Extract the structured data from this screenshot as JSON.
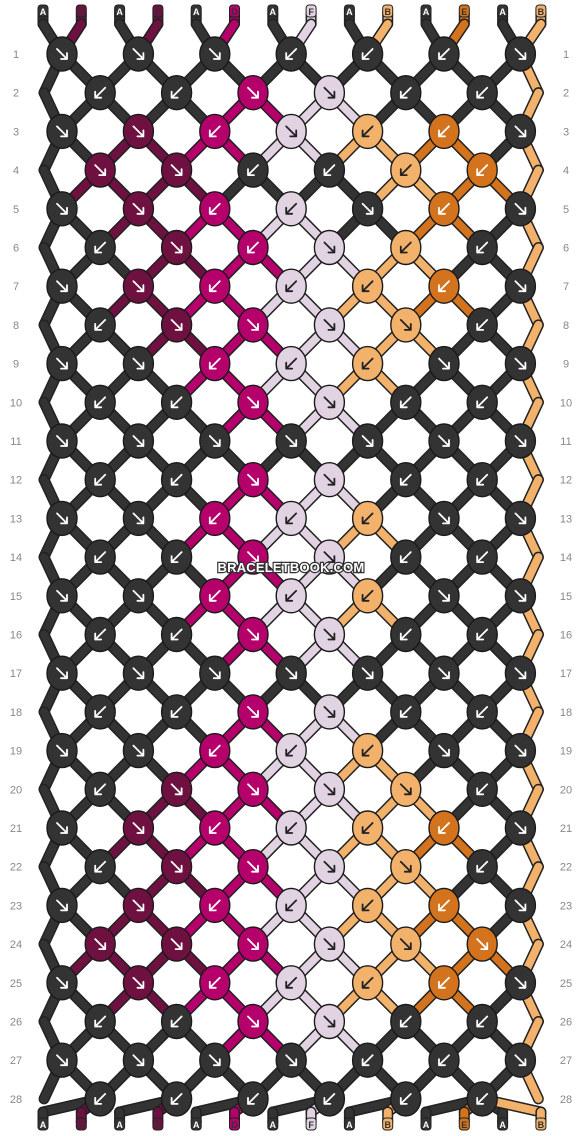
{
  "pattern": {
    "watermark": "BRACELETBOOK.COM",
    "strands_top": [
      "A",
      "C",
      "A",
      "C",
      "A",
      "D",
      "A",
      "F",
      "A",
      "B",
      "A",
      "E",
      "A",
      "B"
    ],
    "strands_bottom": [
      "A",
      "C",
      "A",
      "C",
      "A",
      "D",
      "A",
      "F",
      "A",
      "B",
      "A",
      "E",
      "A",
      "B"
    ],
    "colors": {
      "A": "#333333",
      "B": "#f2b26b",
      "C": "#6e1040",
      "D": "#b5006c",
      "E": "#d4731e",
      "F": "#e2d3e2"
    },
    "rows": [
      [
        [
          "A",
          "R"
        ],
        [
          "A",
          "R"
        ],
        [
          "A",
          "R"
        ],
        [
          "A",
          "L"
        ],
        [
          "A",
          "L"
        ],
        [
          "A",
          "L"
        ],
        [
          "A",
          "R"
        ]
      ],
      [
        [
          "A",
          "L"
        ],
        [
          "A",
          "L"
        ],
        [
          "D",
          "R"
        ],
        [
          "F",
          "R"
        ],
        [
          "A",
          "L"
        ],
        [
          "A",
          "L"
        ]
      ],
      [
        [
          "A",
          "R"
        ],
        [
          "C",
          "R"
        ],
        [
          "D",
          "L"
        ],
        [
          "F",
          "R"
        ],
        [
          "B",
          "L"
        ],
        [
          "E",
          "L"
        ],
        [
          "A",
          "R"
        ]
      ],
      [
        [
          "C",
          "R"
        ],
        [
          "C",
          "R"
        ],
        [
          "A",
          "L"
        ],
        [
          "A",
          "L"
        ],
        [
          "B",
          "L"
        ],
        [
          "E",
          "L"
        ]
      ],
      [
        [
          "A",
          "R"
        ],
        [
          "C",
          "R"
        ],
        [
          "D",
          "L"
        ],
        [
          "F",
          "L"
        ],
        [
          "A",
          "R"
        ],
        [
          "E",
          "L"
        ],
        [
          "A",
          "R"
        ]
      ],
      [
        [
          "A",
          "L"
        ],
        [
          "C",
          "R"
        ],
        [
          "D",
          "L"
        ],
        [
          "F",
          "R"
        ],
        [
          "B",
          "L"
        ],
        [
          "A",
          "L"
        ]
      ],
      [
        [
          "A",
          "R"
        ],
        [
          "C",
          "R"
        ],
        [
          "D",
          "L"
        ],
        [
          "F",
          "L"
        ],
        [
          "B",
          "L"
        ],
        [
          "E",
          "L"
        ],
        [
          "A",
          "R"
        ]
      ],
      [
        [
          "A",
          "L"
        ],
        [
          "C",
          "R"
        ],
        [
          "D",
          "R"
        ],
        [
          "F",
          "R"
        ],
        [
          "B",
          "R"
        ],
        [
          "A",
          "L"
        ]
      ],
      [
        [
          "A",
          "R"
        ],
        [
          "A",
          "R"
        ],
        [
          "D",
          "L"
        ],
        [
          "F",
          "L"
        ],
        [
          "B",
          "L"
        ],
        [
          "A",
          "R"
        ],
        [
          "A",
          "R"
        ]
      ],
      [
        [
          "A",
          "L"
        ],
        [
          "A",
          "L"
        ],
        [
          "D",
          "R"
        ],
        [
          "F",
          "R"
        ],
        [
          "A",
          "L"
        ],
        [
          "A",
          "L"
        ]
      ],
      [
        [
          "A",
          "R"
        ],
        [
          "A",
          "R"
        ],
        [
          "A",
          "R"
        ],
        [
          "A",
          "R"
        ],
        [
          "A",
          "R"
        ],
        [
          "A",
          "R"
        ],
        [
          "A",
          "R"
        ]
      ],
      [
        [
          "A",
          "L"
        ],
        [
          "A",
          "L"
        ],
        [
          "D",
          "R"
        ],
        [
          "F",
          "R"
        ],
        [
          "A",
          "L"
        ],
        [
          "A",
          "L"
        ]
      ],
      [
        [
          "A",
          "R"
        ],
        [
          "A",
          "R"
        ],
        [
          "D",
          "L"
        ],
        [
          "F",
          "L"
        ],
        [
          "B",
          "L"
        ],
        [
          "A",
          "R"
        ],
        [
          "A",
          "R"
        ]
      ],
      [
        [
          "A",
          "L"
        ],
        [
          "A",
          "L"
        ],
        [
          "D",
          "R"
        ],
        [
          "F",
          "R"
        ],
        [
          "A",
          "L"
        ],
        [
          "A",
          "L"
        ]
      ],
      [
        [
          "A",
          "R"
        ],
        [
          "A",
          "R"
        ],
        [
          "D",
          "L"
        ],
        [
          "F",
          "L"
        ],
        [
          "B",
          "L"
        ],
        [
          "A",
          "R"
        ],
        [
          "A",
          "R"
        ]
      ],
      [
        [
          "A",
          "L"
        ],
        [
          "A",
          "L"
        ],
        [
          "D",
          "R"
        ],
        [
          "F",
          "R"
        ],
        [
          "A",
          "L"
        ],
        [
          "A",
          "L"
        ]
      ],
      [
        [
          "A",
          "R"
        ],
        [
          "A",
          "R"
        ],
        [
          "A",
          "R"
        ],
        [
          "A",
          "R"
        ],
        [
          "A",
          "R"
        ],
        [
          "A",
          "R"
        ],
        [
          "A",
          "R"
        ]
      ],
      [
        [
          "A",
          "L"
        ],
        [
          "A",
          "L"
        ],
        [
          "D",
          "R"
        ],
        [
          "F",
          "R"
        ],
        [
          "A",
          "L"
        ],
        [
          "A",
          "L"
        ]
      ],
      [
        [
          "A",
          "R"
        ],
        [
          "A",
          "R"
        ],
        [
          "D",
          "L"
        ],
        [
          "F",
          "L"
        ],
        [
          "B",
          "L"
        ],
        [
          "A",
          "R"
        ],
        [
          "A",
          "R"
        ]
      ],
      [
        [
          "A",
          "L"
        ],
        [
          "C",
          "R"
        ],
        [
          "D",
          "R"
        ],
        [
          "F",
          "R"
        ],
        [
          "B",
          "R"
        ],
        [
          "A",
          "L"
        ]
      ],
      [
        [
          "A",
          "R"
        ],
        [
          "C",
          "R"
        ],
        [
          "D",
          "L"
        ],
        [
          "F",
          "L"
        ],
        [
          "B",
          "L"
        ],
        [
          "E",
          "L"
        ],
        [
          "A",
          "R"
        ]
      ],
      [
        [
          "A",
          "L"
        ],
        [
          "C",
          "R"
        ],
        [
          "D",
          "R"
        ],
        [
          "F",
          "R"
        ],
        [
          "B",
          "R"
        ],
        [
          "A",
          "L"
        ]
      ],
      [
        [
          "A",
          "R"
        ],
        [
          "C",
          "R"
        ],
        [
          "D",
          "L"
        ],
        [
          "F",
          "L"
        ],
        [
          "B",
          "L"
        ],
        [
          "E",
          "L"
        ],
        [
          "A",
          "R"
        ]
      ],
      [
        [
          "C",
          "R"
        ],
        [
          "C",
          "R"
        ],
        [
          "D",
          "R"
        ],
        [
          "F",
          "R"
        ],
        [
          "B",
          "R"
        ],
        [
          "E",
          "R"
        ]
      ],
      [
        [
          "A",
          "R"
        ],
        [
          "C",
          "R"
        ],
        [
          "D",
          "L"
        ],
        [
          "F",
          "L"
        ],
        [
          "B",
          "L"
        ],
        [
          "E",
          "L"
        ],
        [
          "A",
          "R"
        ]
      ],
      [
        [
          "A",
          "L"
        ],
        [
          "A",
          "L"
        ],
        [
          "D",
          "R"
        ],
        [
          "F",
          "R"
        ],
        [
          "A",
          "L"
        ],
        [
          "A",
          "L"
        ]
      ],
      [
        [
          "A",
          "R"
        ],
        [
          "A",
          "R"
        ],
        [
          "A",
          "R"
        ],
        [
          "A",
          "R"
        ],
        [
          "A",
          "L"
        ],
        [
          "A",
          "L"
        ],
        [
          "A",
          "R"
        ]
      ],
      [
        [
          "A",
          "L"
        ],
        [
          "A",
          "L"
        ],
        [
          "A",
          "L"
        ],
        [
          "A",
          "L"
        ],
        [
          "A",
          "L"
        ],
        [
          "A",
          "L"
        ]
      ]
    ]
  }
}
